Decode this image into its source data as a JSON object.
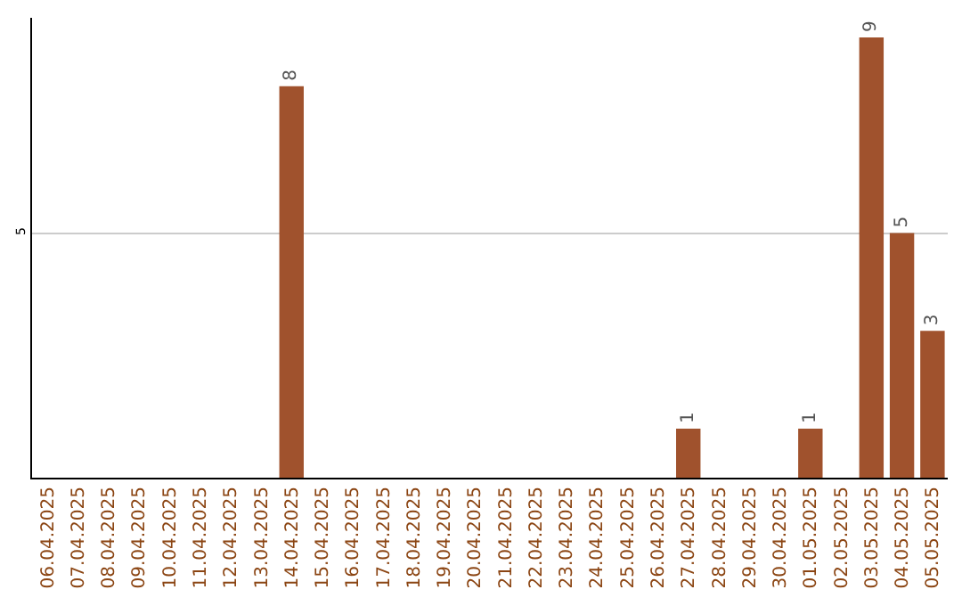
{
  "chart_data": {
    "type": "bar",
    "categories": [
      "06.04.2025",
      "07.04.2025",
      "08.04.2025",
      "09.04.2025",
      "10.04.2025",
      "11.04.2025",
      "12.04.2025",
      "13.04.2025",
      "14.04.2025",
      "15.04.2025",
      "16.04.2025",
      "17.04.2025",
      "18.04.2025",
      "19.04.2025",
      "20.04.2025",
      "21.04.2025",
      "22.04.2025",
      "23.04.2025",
      "24.04.2025",
      "25.04.2025",
      "26.04.2025",
      "27.04.2025",
      "28.04.2025",
      "29.04.2025",
      "30.04.2025",
      "01.05.2025",
      "02.05.2025",
      "03.05.2025",
      "04.05.2025",
      "05.05.2025"
    ],
    "values": [
      0,
      0,
      0,
      0,
      0,
      0,
      0,
      0,
      8,
      0,
      0,
      0,
      0,
      0,
      0,
      0,
      0,
      0,
      0,
      0,
      0,
      1,
      0,
      0,
      0,
      1,
      0,
      9,
      5,
      3
    ],
    "value_labels": [
      null,
      null,
      null,
      null,
      null,
      null,
      null,
      null,
      "8",
      null,
      null,
      null,
      null,
      null,
      null,
      null,
      null,
      null,
      null,
      null,
      null,
      "1",
      null,
      null,
      null,
      "1",
      null,
      "9",
      "5",
      "3"
    ],
    "color": "#a0522d",
    "ylim": [
      0,
      9.4
    ],
    "yticks": [
      5
    ],
    "grid": "y",
    "legend": false
  }
}
